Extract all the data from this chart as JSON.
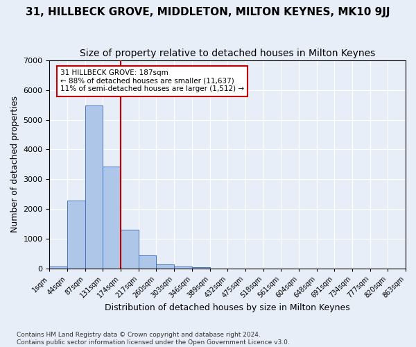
{
  "title1": "31, HILLBECK GROVE, MIDDLETON, MILTON KEYNES, MK10 9JJ",
  "title2": "Size of property relative to detached houses in Milton Keynes",
  "xlabel": "Distribution of detached houses by size in Milton Keynes",
  "ylabel": "Number of detached properties",
  "footnote": "Contains HM Land Registry data © Crown copyright and database right 2024.\nContains public sector information licensed under the Open Government Licence v3.0.",
  "bin_labels": [
    "1sqm",
    "44sqm",
    "87sqm",
    "131sqm",
    "174sqm",
    "217sqm",
    "260sqm",
    "303sqm",
    "346sqm",
    "389sqm",
    "432sqm",
    "475sqm",
    "518sqm",
    "561sqm",
    "604sqm",
    "648sqm",
    "691sqm",
    "734sqm",
    "777sqm",
    "820sqm",
    "863sqm"
  ],
  "bar_values": [
    80,
    2300,
    5480,
    3430,
    1320,
    460,
    160,
    80,
    50,
    0,
    0,
    0,
    0,
    0,
    0,
    0,
    0,
    0,
    0,
    0
  ],
  "bar_color": "#aec6e8",
  "bar_edge_color": "#4472c4",
  "vline_x": 4.0,
  "vline_color": "#c00000",
  "annotation_text": "31 HILLBECK GROVE: 187sqm\n← 88% of detached houses are smaller (11,637)\n11% of semi-detached houses are larger (1,512) →",
  "annotation_box_color": "#ffffff",
  "annotation_box_edge": "#c00000",
  "ylim": [
    0,
    7000
  ],
  "yticks": [
    0,
    1000,
    2000,
    3000,
    4000,
    5000,
    6000,
    7000
  ],
  "background_color": "#e8eef7",
  "grid_color": "#ffffff",
  "title1_fontsize": 11,
  "title2_fontsize": 10,
  "xlabel_fontsize": 9,
  "ylabel_fontsize": 9
}
